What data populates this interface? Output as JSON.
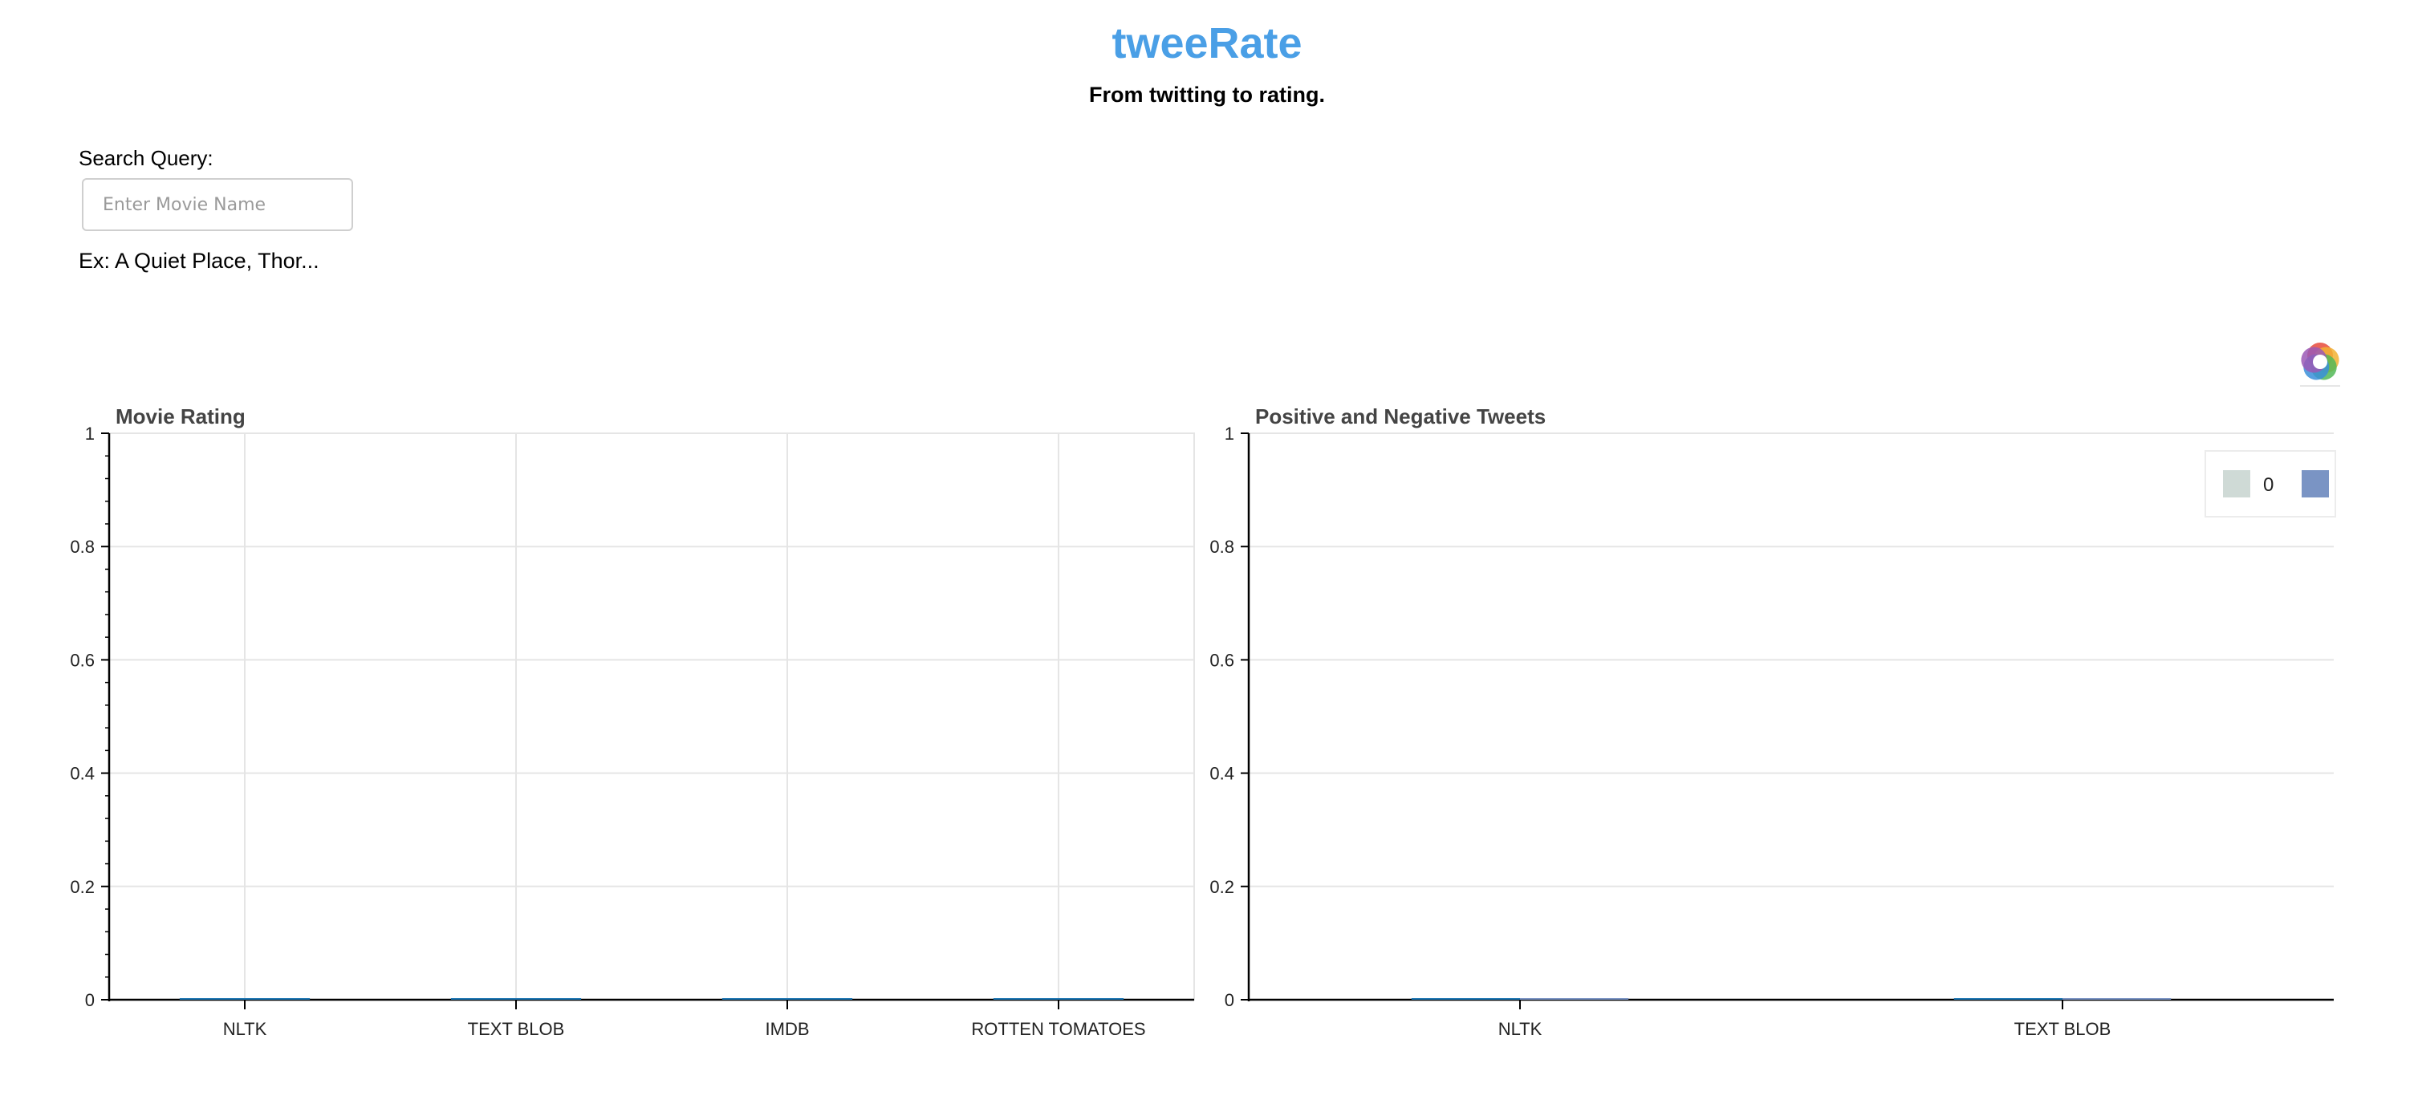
{
  "header": {
    "title": "tweeRate",
    "subtitle": "From twitting to rating."
  },
  "search": {
    "label": "Search Query:",
    "placeholder": "Enter Movie Name",
    "value": "",
    "example": "Ex: A Quiet Place, Thor..."
  },
  "colors": {
    "brand": "#4a9fe6",
    "bar": "#1f77b4",
    "grid": "#e5e5e5",
    "axis": "#000000",
    "legend_swatch_1": "#cfdad6",
    "legend_swatch_2": "#7a94c4"
  },
  "toolbar": {
    "logo_icon": "bokeh-logo-icon"
  },
  "chart_data": [
    {
      "type": "bar",
      "title": "Movie Rating",
      "categories": [
        "NLTK",
        "TEXT BLOB",
        "IMDB",
        "ROTTEN TOMATOES"
      ],
      "values": [
        0,
        0,
        0,
        0
      ],
      "ylim": [
        0,
        1
      ],
      "yticks": [
        "0",
        "0.2",
        "0.4",
        "0.6",
        "0.8",
        "1"
      ],
      "xgrid": true,
      "ygrid": true
    },
    {
      "type": "bar",
      "title": "Positive and Negative Tweets",
      "categories": [
        "NLTK",
        "TEXT BLOB"
      ],
      "series": [
        {
          "values": [
            0,
            0
          ]
        },
        {
          "values": [
            0,
            0
          ]
        }
      ],
      "ylim": [
        0,
        1
      ],
      "yticks": [
        "0",
        "0.2",
        "0.4",
        "0.6",
        "0.8",
        "1"
      ],
      "xgrid": false,
      "ygrid": true,
      "legend": {
        "placement": "top-right",
        "entries": [
          "0",
          ""
        ]
      }
    }
  ]
}
